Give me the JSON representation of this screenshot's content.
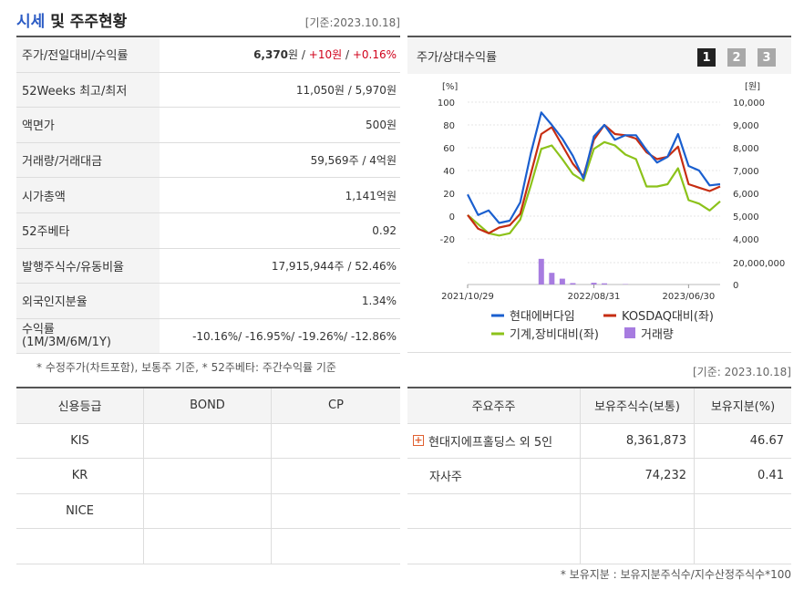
{
  "header": {
    "title_part1": "시세",
    "title_part2": " 및 주주현황",
    "base_date": "[기준:2023.10.18]"
  },
  "market": {
    "rows": [
      {
        "label": "주가/전일대비/수익률",
        "price": "6,370",
        "unit": "원",
        "change": "+10원",
        "rate": "+0.16%"
      },
      {
        "label": "52Weeks 최고/최저",
        "value": "11,050원 / 5,970원"
      },
      {
        "label": "액면가",
        "value": "500원"
      },
      {
        "label": "거래량/거래대금",
        "value": "59,569주 / 4억원"
      },
      {
        "label": "시가총액",
        "value": "1,141억원"
      },
      {
        "label": "52주베타",
        "value": "0.92"
      },
      {
        "label": "발행주식수/유동비율",
        "value": "17,915,944주 / 52.46%"
      },
      {
        "label": "외국인지분율",
        "value": "1.34%"
      }
    ],
    "returns": {
      "label": "수익률",
      "sublabel": "(1M/3M/6M/1Y)",
      "value": "-10.16%/ -16.95%/ -19.26%/ -12.86%"
    },
    "note": "* 수정주가(차트포함), 보통주 기준, * 52주베타: 주간수익률 기준"
  },
  "chart_panel": {
    "title": "주가/상대수익률",
    "pages": [
      "1",
      "2",
      "3"
    ],
    "active_page": 0
  },
  "chart_data": {
    "type": "line",
    "y_left_unit": "[%]",
    "y_right_unit": "[원]",
    "left_ticks": [
      100,
      80,
      60,
      40,
      20,
      0,
      -20
    ],
    "right_ticks": [
      "10,000",
      "9,000",
      "8,000",
      "7,000",
      "6,000",
      "5,000",
      "4,000"
    ],
    "volume_ticks": [
      "20,000,000",
      "0"
    ],
    "x_labels": [
      "2021/10/29",
      "2022/08/31",
      "2023/06/30"
    ],
    "series": [
      {
        "name": "현대에버다임",
        "color": "#1a5fcf",
        "values": [
          19,
          1,
          5,
          -6,
          -4,
          12,
          55,
          91,
          80,
          68,
          53,
          33,
          70,
          80,
          67,
          71,
          71,
          58,
          47,
          52,
          72,
          44,
          40,
          27,
          28
        ]
      },
      {
        "name": "KOSDAQ대비(좌)",
        "color": "#c62d12",
        "values": [
          1,
          -11,
          -15,
          -10,
          -8,
          2,
          37,
          72,
          78,
          62,
          46,
          35,
          67,
          80,
          72,
          71,
          68,
          56,
          50,
          52,
          61,
          28,
          25,
          22,
          26
        ]
      },
      {
        "name": "기계,장비대비(좌)",
        "color": "#8cc21a",
        "values": [
          1,
          -7,
          -15,
          -17,
          -15,
          -3,
          27,
          59,
          62,
          50,
          37,
          31,
          59,
          65,
          62,
          54,
          50,
          26,
          26,
          28,
          42,
          14,
          11,
          5,
          13
        ]
      }
    ],
    "volume": {
      "name": "거래량",
      "color": "#a77ce0",
      "values": [
        0,
        0,
        0,
        0,
        0,
        0,
        0,
        22000000,
        10000000,
        5000000,
        1200000,
        0,
        1500000,
        1000000,
        0,
        300000,
        0,
        0,
        0,
        0,
        0,
        0,
        0,
        0,
        0
      ]
    },
    "ylim": [
      -20,
      100
    ],
    "volume_max": 25000000
  },
  "credit": {
    "headers": [
      "신용등급",
      "BOND",
      "CP"
    ],
    "rows": [
      [
        "KIS",
        "",
        ""
      ],
      [
        "KR",
        "",
        ""
      ],
      [
        "NICE",
        "",
        ""
      ],
      [
        "",
        "",
        ""
      ]
    ]
  },
  "holders": {
    "base_date": "[기준: 2023.10.18]",
    "headers": [
      "주요주주",
      "보유주식수(보통)",
      "보유지분(%)"
    ],
    "rows": [
      {
        "name": "현대지에프홀딩스 외 5인",
        "shares": "8,361,873",
        "pct": "46.67",
        "expandable": true
      },
      {
        "name": "자사주",
        "shares": "74,232",
        "pct": "0.41",
        "expandable": false
      },
      {
        "name": "",
        "shares": "",
        "pct": "",
        "expandable": false
      },
      {
        "name": "",
        "shares": "",
        "pct": "",
        "expandable": false
      }
    ],
    "note": "* 보유지분 : 보유지분주식수/지수산정주식수*100"
  }
}
